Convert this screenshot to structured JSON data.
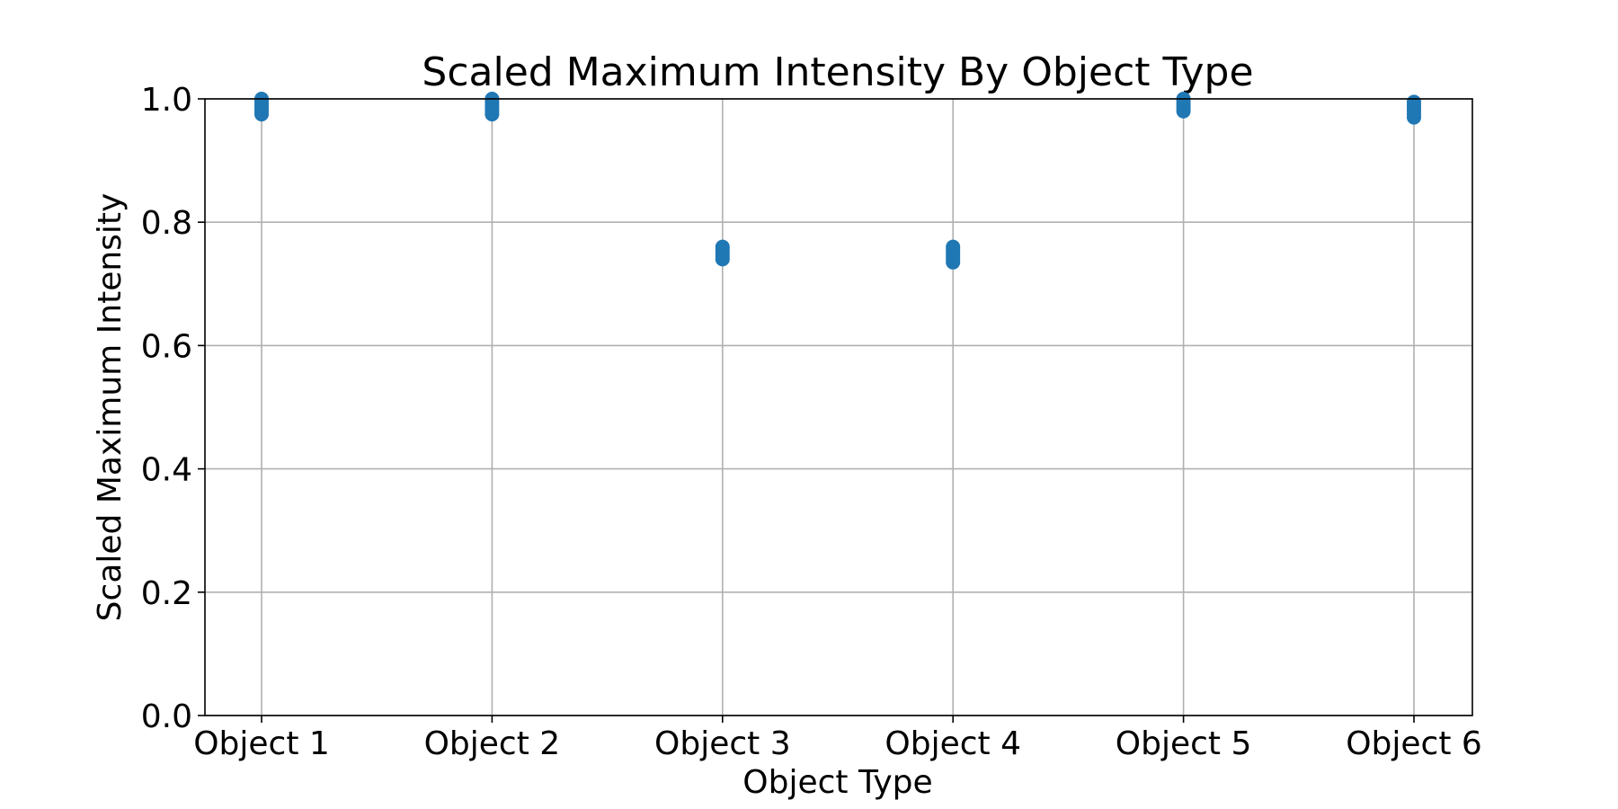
{
  "chart_data": {
    "type": "scatter",
    "title": "Scaled Maximum Intensity By Object Type",
    "xlabel": "Object Type",
    "ylabel": "Scaled Maximum Intensity",
    "categories": [
      "Object 1",
      "Object 2",
      "Object 3",
      "Object 4",
      "Object 5",
      "Object 6"
    ],
    "ylim": [
      0.0,
      1.0
    ],
    "yticks": [
      0.0,
      0.2,
      0.4,
      0.6,
      0.8,
      1.0
    ],
    "ytick_labels": [
      "0.0",
      "0.2",
      "0.4",
      "0.6",
      "0.8",
      "1.0"
    ],
    "grid": true,
    "legend": "none",
    "marker_color": "#1f77b4",
    "series": [
      {
        "points": [
          {
            "category": "Object 1",
            "y": [
              0.975,
              0.98,
              0.985,
              0.99,
              0.995,
              1.0
            ]
          },
          {
            "category": "Object 2",
            "y": [
              0.975,
              0.98,
              0.985,
              0.99,
              0.995,
              1.0
            ]
          },
          {
            "category": "Object 3",
            "y": [
              0.74,
              0.745,
              0.75,
              0.755,
              0.76
            ]
          },
          {
            "category": "Object 4",
            "y": [
              0.735,
              0.74,
              0.745,
              0.75,
              0.755,
              0.76
            ]
          },
          {
            "category": "Object 5",
            "y": [
              0.98,
              0.985,
              0.99,
              0.995,
              1.0
            ]
          },
          {
            "category": "Object 6",
            "y": [
              0.97,
              0.975,
              0.98,
              0.985,
              0.99,
              0.995
            ]
          }
        ]
      }
    ]
  }
}
